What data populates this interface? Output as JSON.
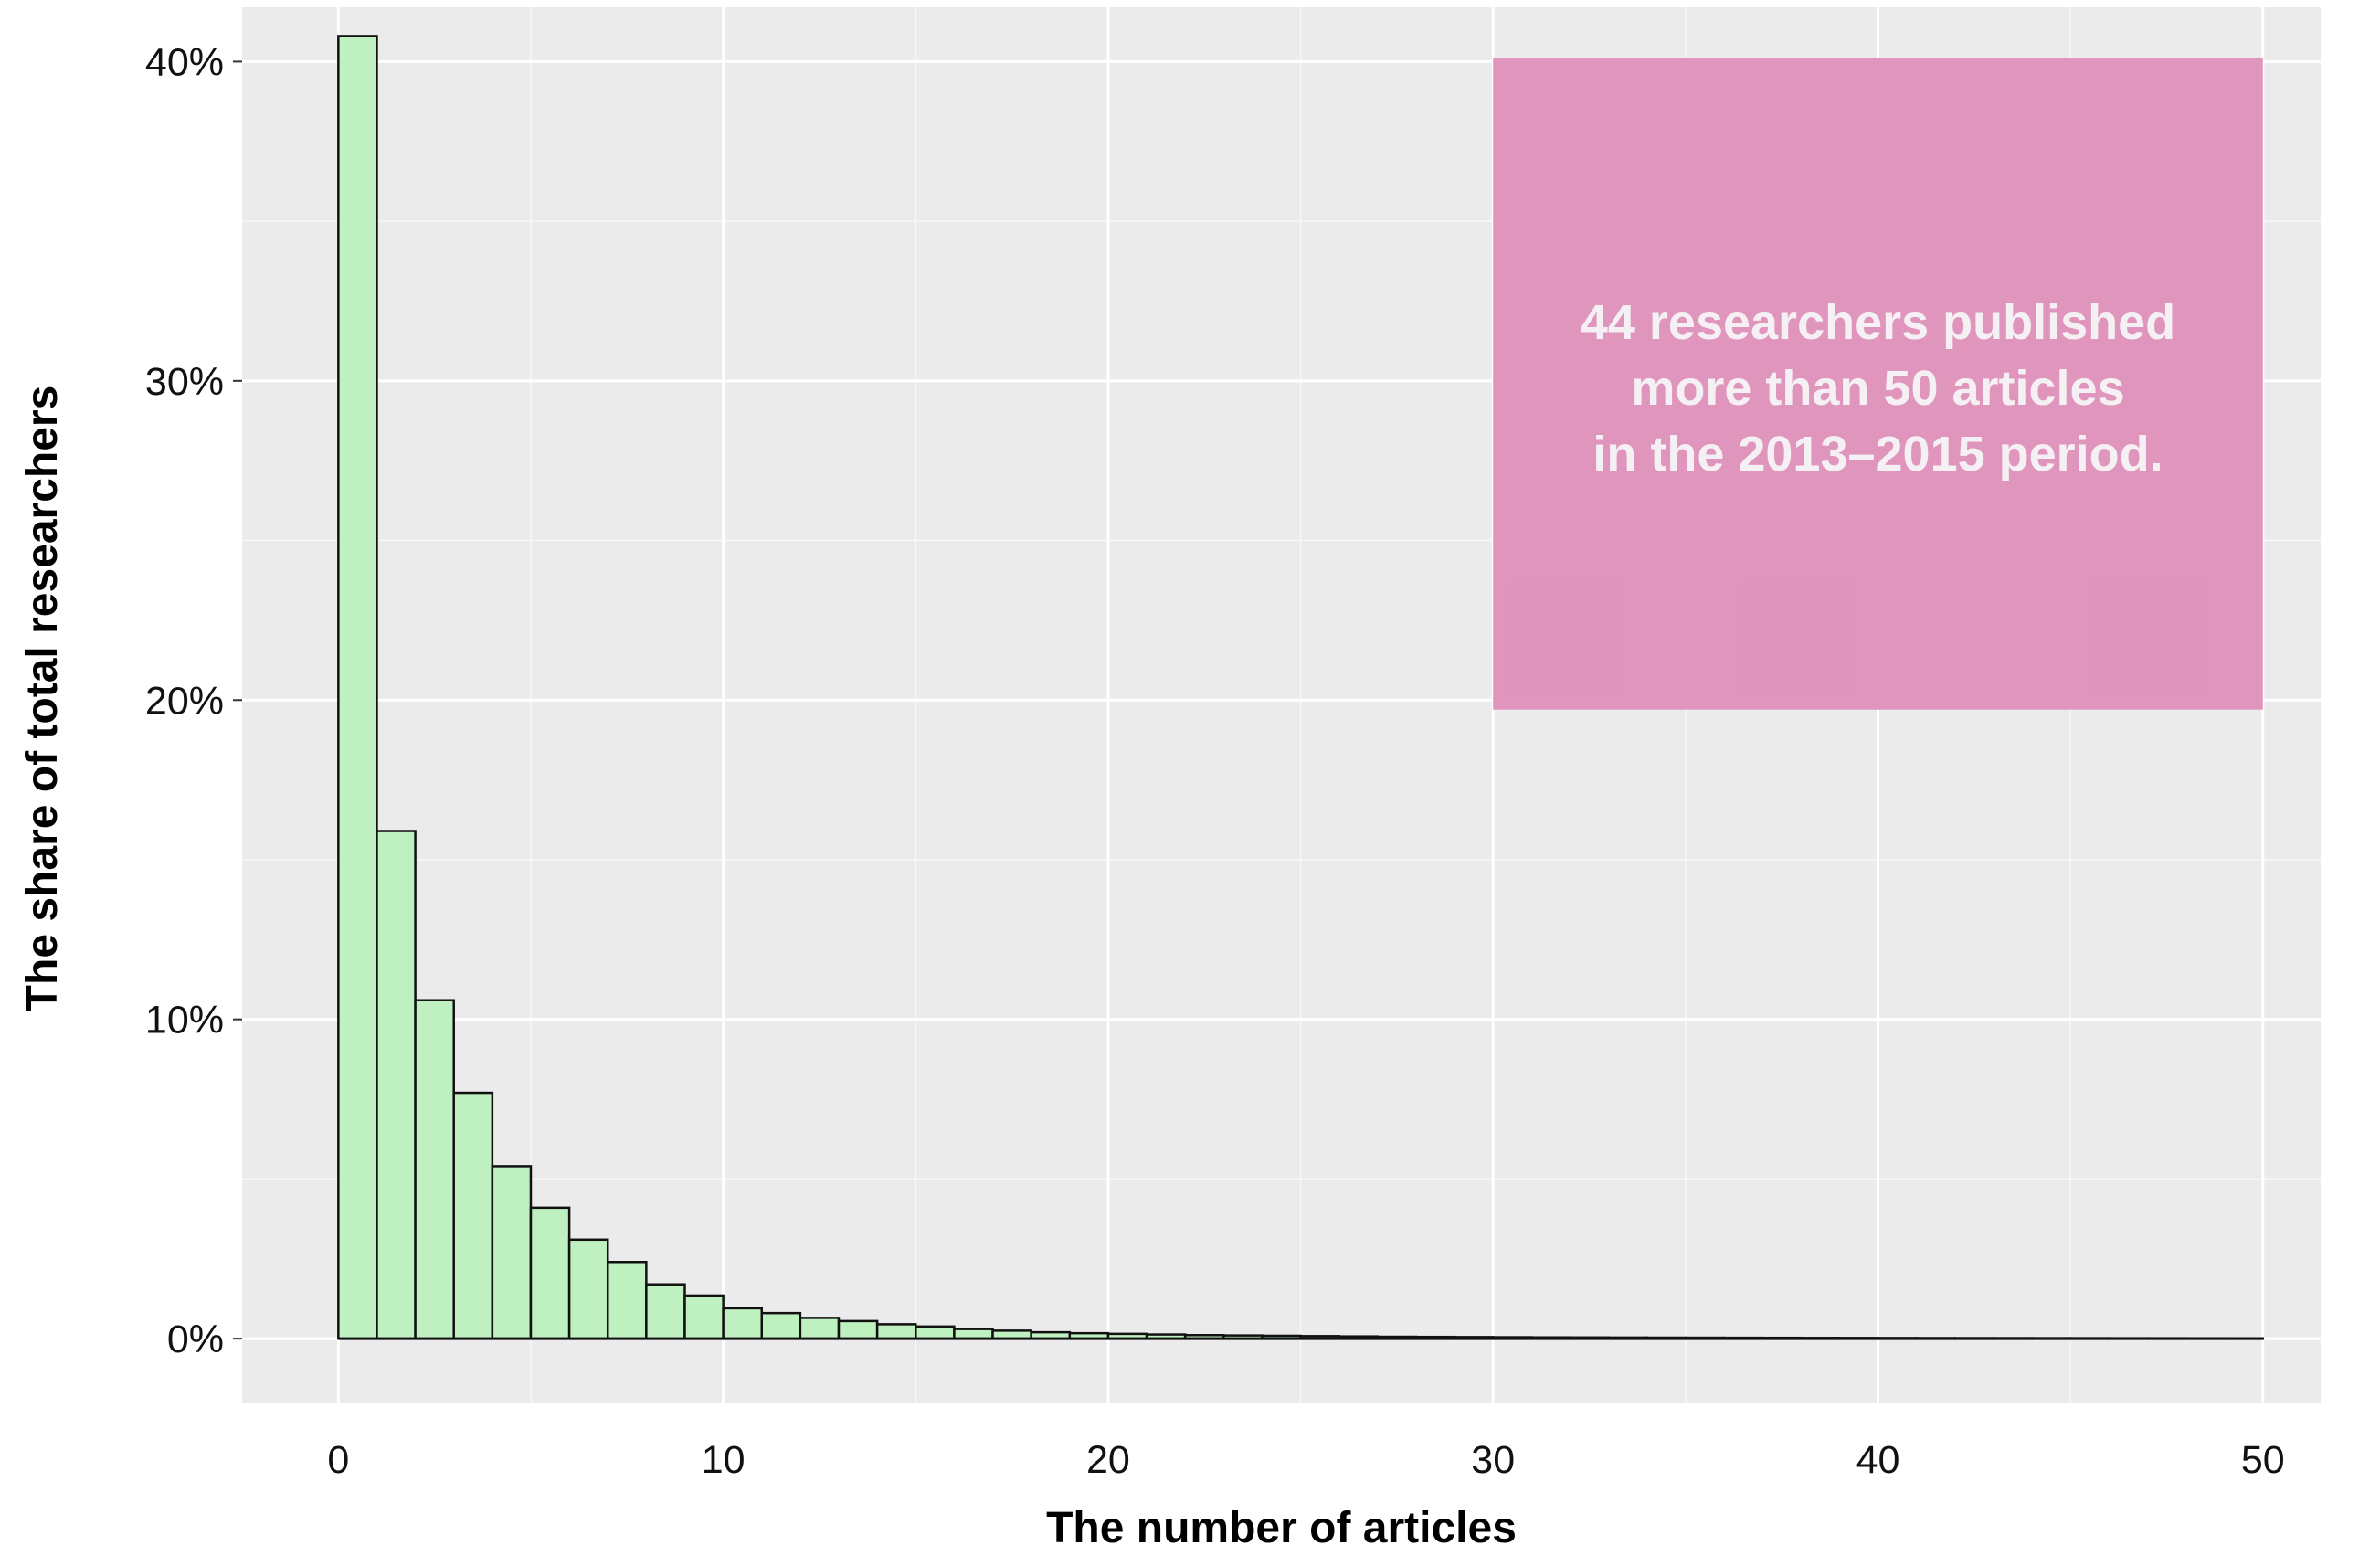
{
  "chart_data": {
    "type": "bar",
    "subtype": "histogram",
    "title": "",
    "xlabel": "The number of articles",
    "ylabel": "The share of total researchers",
    "xlim": [
      -2.5,
      51.5
    ],
    "ylim": [
      -2,
      41.7
    ],
    "x_ticks": [
      0,
      10,
      20,
      30,
      40,
      50
    ],
    "y_ticks": [
      0,
      10,
      20,
      30,
      40
    ],
    "y_tick_labels": [
      "0%",
      "10%",
      "20%",
      "30%",
      "40%"
    ],
    "bin_width": 1,
    "bin_starts": [
      0,
      1,
      2,
      3,
      4,
      5,
      6,
      7,
      8,
      9,
      10,
      11,
      12,
      13,
      14,
      15,
      16,
      17,
      18,
      19,
      20,
      21,
      22,
      23,
      24,
      25,
      26,
      27,
      28,
      29,
      30,
      31,
      32,
      33,
      34,
      35,
      36,
      37,
      38,
      39,
      40,
      41,
      42,
      43,
      44,
      45,
      46,
      47,
      48,
      49
    ],
    "values": [
      40.8,
      15.9,
      10.6,
      7.7,
      5.4,
      4.1,
      3.1,
      2.4,
      1.7,
      1.35,
      0.95,
      0.8,
      0.65,
      0.55,
      0.45,
      0.38,
      0.3,
      0.25,
      0.2,
      0.17,
      0.15,
      0.13,
      0.11,
      0.1,
      0.09,
      0.08,
      0.07,
      0.06,
      0.055,
      0.05,
      0.045,
      0.04,
      0.038,
      0.035,
      0.032,
      0.03,
      0.028,
      0.026,
      0.024,
      0.022,
      0.02,
      0.018,
      0.017,
      0.016,
      0.015,
      0.014,
      0.013,
      0.012,
      0.011,
      0.01
    ],
    "annotation": {
      "lines": [
        "44 researchers published",
        "more than 50 articles",
        "in the 2013–2015 period."
      ],
      "x_range": [
        30,
        50
      ],
      "y_range": [
        19.7,
        40.1
      ]
    },
    "grid": true,
    "legend": "none",
    "colors": {
      "bar_fill": "#bff0bf",
      "bar_stroke": "#111111",
      "panel_background": "#ebebeb",
      "grid_major": "#ffffff",
      "annotation_box": "#de8eb7",
      "annotation_text": "#f5f0f4"
    }
  }
}
